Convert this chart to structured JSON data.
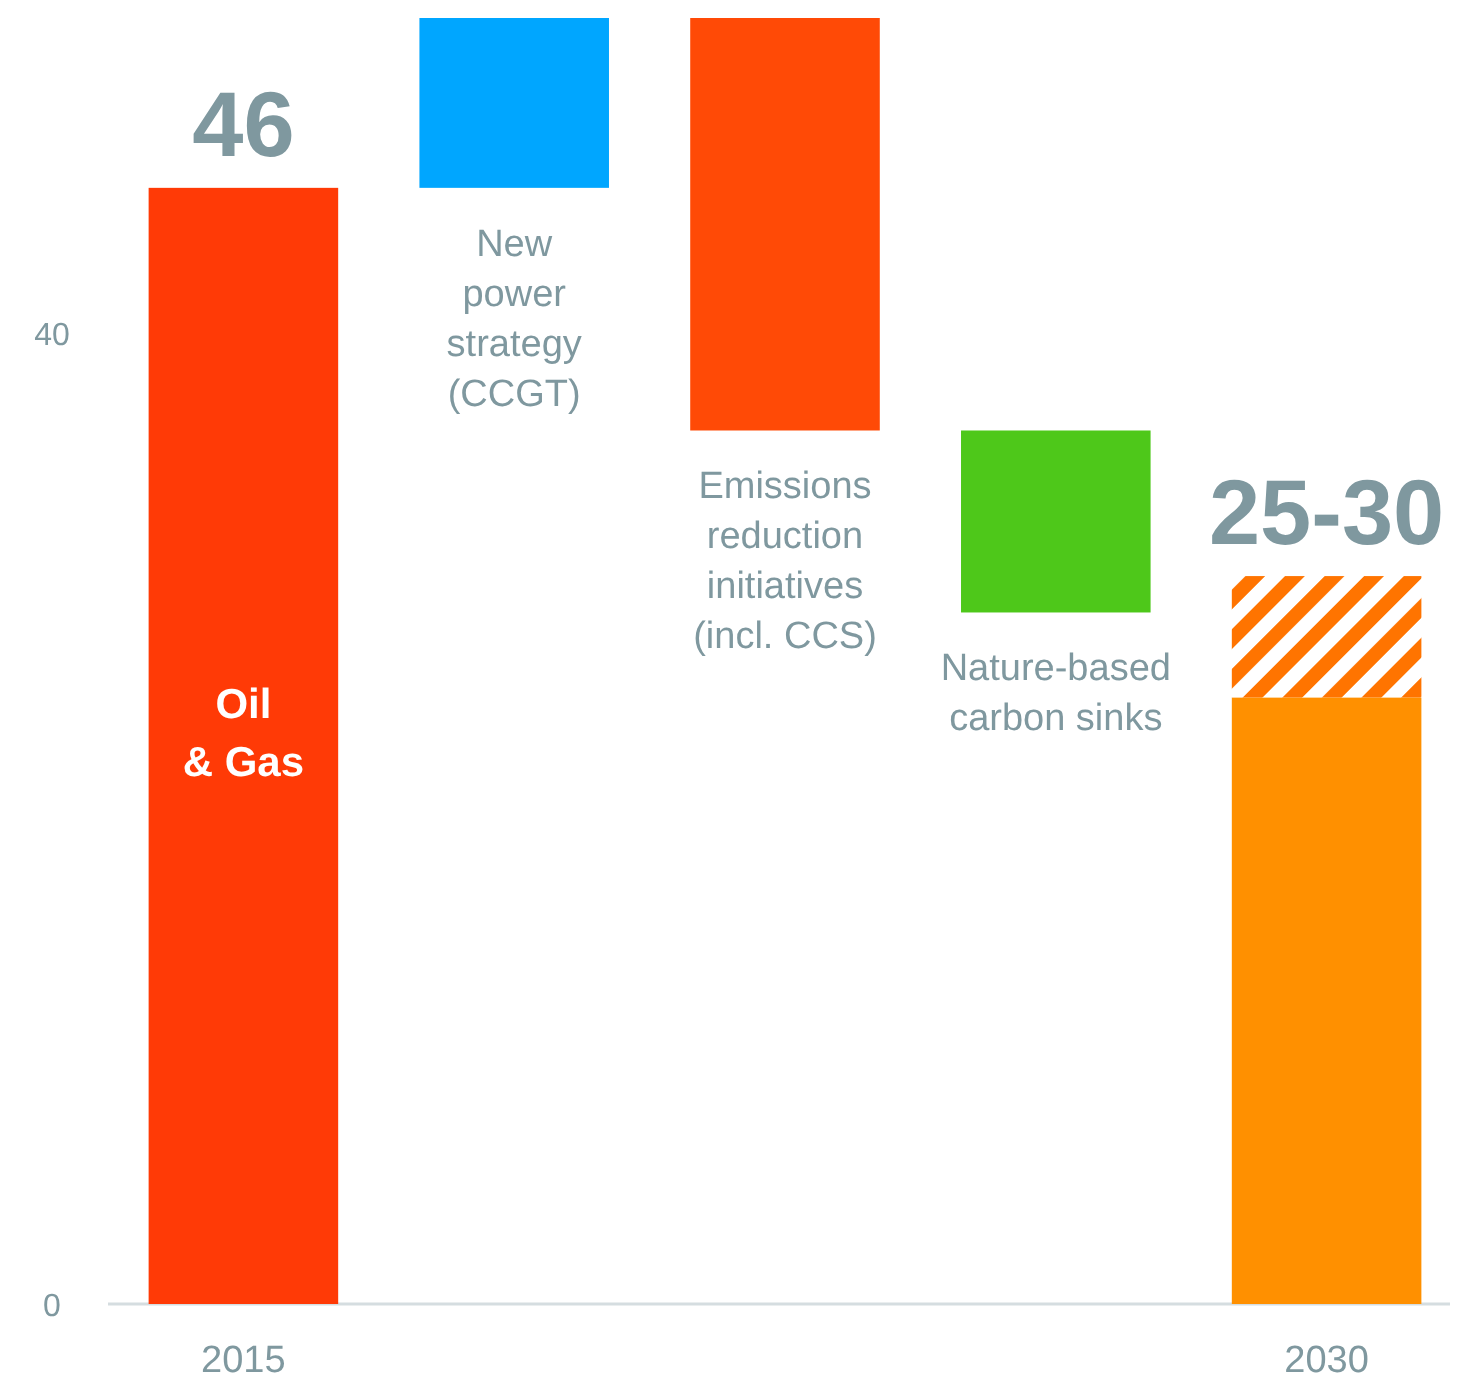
{
  "chart_data": {
    "type": "bar",
    "categories": [
      "2015",
      null,
      null,
      null,
      "2030"
    ],
    "series": [
      {
        "colors": [
          "#ff3a06",
          "#00a6ff",
          "#ff4a06",
          "#4ec81a",
          "#ff9000"
        ],
        "values": [
          46,
          7,
          -17,
          -7.5,
          25
        ],
        "base": [
          0,
          46,
          53,
          36,
          0
        ],
        "value_labels": [
          "46",
          null,
          null,
          null,
          null
        ]
      },
      {
        "color": "#ff7400",
        "values": [
          null,
          null,
          null,
          null,
          5
        ],
        "base": [
          null,
          null,
          null,
          null,
          25
        ],
        "value_labels": [
          null,
          null,
          null,
          null,
          "25-30"
        ]
      }
    ],
    "ylim": [
      0,
      53
    ],
    "yticks": [
      0,
      40
    ],
    "grid": false,
    "annotations": [
      "Oil\n& Gas",
      "New\npower\nstrategy\n(CCGT)",
      "Emissions\nreduction\ninitiatives\n(incl. CCS)",
      "Nature-based\ncarbon sinks"
    ]
  }
}
